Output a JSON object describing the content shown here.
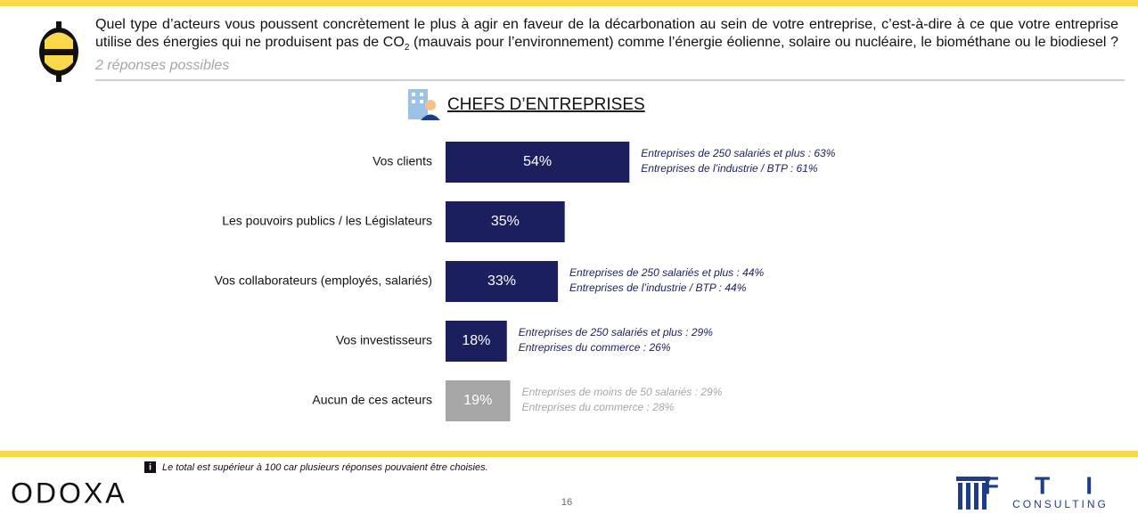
{
  "chart_data": {
    "type": "bar",
    "question": [
      "Quel type d’acteurs vous poussent concrètement le plus à agir en faveur de la décarbonation au sein de votre entreprise, c’est-à-dire à ce que votre entreprise utilise des énergies qui ne produisent pas de CO",
      "2",
      " (mauvais pour l’environnement) comme l’énergie éolienne, solaire ou nucléaire, le biométhane ou le biodiesel ? "
    ],
    "subtitle": "2 réponses possibles",
    "title": "CHEFS D’ENTREPRISES",
    "categories": [
      "Vos clients",
      "Les pouvoirs publics / les Législateurs",
      "Vos collaborateurs (employés, salariés)",
      "Vos investisseurs",
      "Aucun de ces acteurs"
    ],
    "values": [
      54,
      35,
      33,
      18,
      19
    ],
    "value_labels": [
      "54%",
      "35%",
      "33%",
      "18%",
      "19%"
    ],
    "colors": [
      "#1c1f5e",
      "#1c1f5e",
      "#1c1f5e",
      "#1c1f5e",
      "#a6a6a6"
    ],
    "xlim": [
      0,
      100
    ],
    "annotations": [
      [
        "Entreprises de 250 salariés et plus : 63%",
        "Entreprises de l’industrie / BTP : 61%"
      ],
      null,
      [
        "Entreprises de 250 salariés et plus : 44%",
        "Entreprises de l’industrie / BTP : 44%"
      ],
      [
        "Entreprises de 250 salariés et plus : 29%",
        "Entreprises du commerce : 26%"
      ],
      [
        "Entreprises de moins de 50 salariés : 29%",
        "Entreprises du commerce : 28%"
      ]
    ],
    "footnote": "Le total est supérieur à 100 car plusieurs réponses pouvaient être choisies.",
    "page_number": "16",
    "logo_left": "ODOXA",
    "logo_right": [
      "FTI",
      "CONSULTING"
    ]
  }
}
